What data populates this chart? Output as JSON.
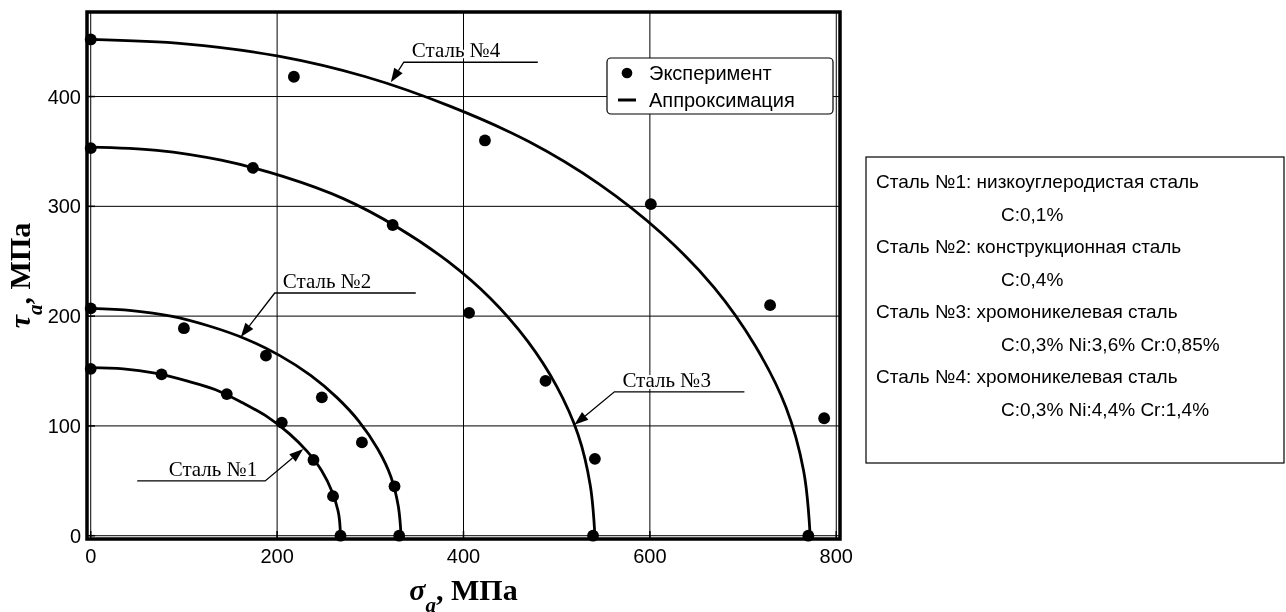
{
  "chart_data": {
    "type": "scatter",
    "xlabel": "σ$_{a}$, МПа",
    "ylabel": "τ$_{a}$, МПа",
    "xlim": [
      -4,
      804
    ],
    "ylim": [
      -3,
      477
    ],
    "xticks": [
      0,
      200,
      400,
      600,
      800
    ],
    "yticks": [
      0,
      100,
      200,
      300,
      400
    ],
    "grid": true,
    "legend": "top right",
    "series": [
      {
        "name": "Эксперимент",
        "marker": "circle",
        "color": "#000000",
        "x": [
          0,
          76,
          146,
          205,
          239,
          260,
          268
        ],
        "values": [
          152,
          147,
          129,
          103,
          69,
          36,
          0
        ]
      },
      {
        "marker": "circle",
        "color": "#000000",
        "x": [
          0,
          100,
          188,
          248,
          291,
          326,
          331
        ],
        "values": [
          207,
          189,
          164,
          126,
          85,
          45,
          0
        ]
      },
      {
        "marker": "circle",
        "color": "#000000",
        "x": [
          0,
          174,
          324,
          406,
          488,
          541,
          539
        ],
        "values": [
          353,
          335,
          283,
          203,
          141,
          70,
          0
        ]
      },
      {
        "marker": "circle",
        "color": "#000000",
        "x": [
          0,
          218,
          423,
          601,
          729,
          787,
          770
        ],
        "values": [
          452,
          418,
          360,
          302,
          210,
          107,
          0
        ]
      },
      {
        "name": "Аппроксимация",
        "type": "line",
        "marker": "none",
        "color": "#000000",
        "line_style": "solid",
        "x": [
          0,
          35,
          69,
          103,
          134,
          163,
          190,
          213,
          232,
          248,
          259,
          266,
          268
        ],
        "values": [
          153,
          152,
          148,
          141,
          133,
          121,
          108,
          93,
          77,
          59,
          40,
          20,
          0
        ]
      },
      {
        "type": "line",
        "marker": "none",
        "color": "#000000",
        "line_style": "solid",
        "x": [
          0,
          44,
          86,
          127,
          167,
          203,
          236,
          264,
          288,
          308,
          322,
          330,
          333
        ],
        "values": [
          207,
          205,
          200,
          191,
          179,
          164,
          146,
          126,
          104,
          79,
          54,
          27,
          0
        ]
      },
      {
        "type": "line",
        "marker": "none",
        "color": "#000000",
        "line_style": "solid",
        "x": [
          0,
          71,
          140,
          207,
          271,
          329,
          383,
          429,
          469,
          500,
          523,
          536,
          541
        ],
        "values": [
          354,
          351,
          342,
          327,
          307,
          281,
          250,
          216,
          177,
          136,
          92,
          46,
          0
        ]
      },
      {
        "type": "line",
        "marker": "none",
        "color": "#000000",
        "line_style": "solid",
        "x": [
          0,
          101,
          200,
          295,
          386,
          470,
          546,
          613,
          669,
          713,
          746,
          765,
          772
        ],
        "values": [
          452,
          448,
          437,
          418,
          391,
          359,
          320,
          275,
          226,
          173,
          117,
          59,
          0
        ]
      }
    ],
    "annotations": [
      {
        "text": "Сталь №1",
        "x": 228,
        "y": 79
      },
      {
        "text": "Сталь №2",
        "x": 161,
        "y": 181
      },
      {
        "text": "Сталь №3",
        "x": 519,
        "y": 101
      },
      {
        "text": "Сталь №4",
        "x": 322,
        "y": 413
      },
      "Сталь №1: низкоуглеродистая сталь",
      "C:0,1%",
      "Сталь №2: конструкционная сталь",
      "C:0,4%",
      "Сталь №3: хромоникелевая сталь",
      "C:0,3% Ni:3,6% Cr:0,85%",
      "Сталь №4: хромоникелевая сталь",
      "C:0,3% Ni:4,4% Cr:1,4%"
    ]
  }
}
